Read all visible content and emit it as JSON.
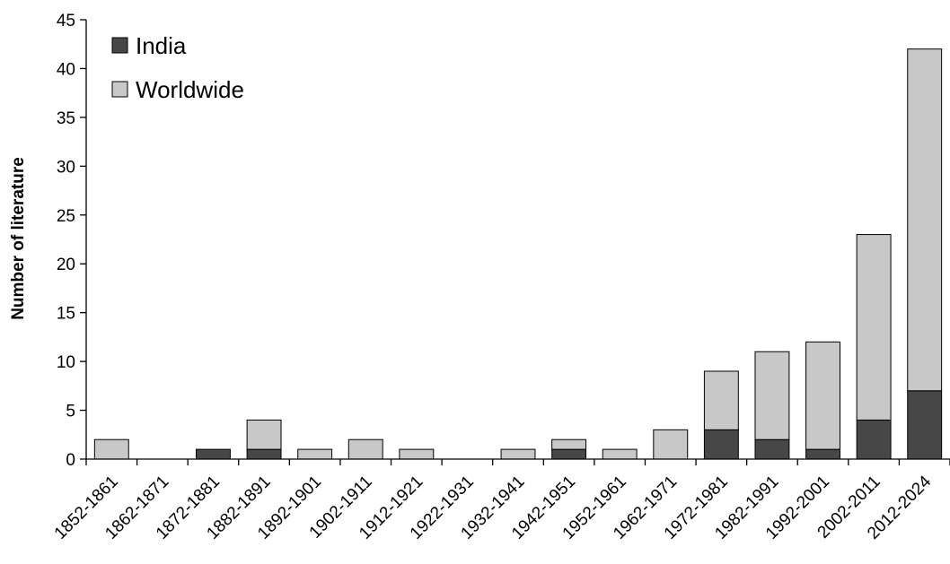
{
  "chart_data": {
    "type": "bar",
    "stacked": true,
    "title": "",
    "xlabel": "",
    "ylabel": "Number of literature",
    "ylim": [
      0,
      45
    ],
    "yticks": [
      0,
      5,
      10,
      15,
      20,
      25,
      30,
      35,
      40,
      45
    ],
    "grid": false,
    "legend_position": "top-left",
    "categories": [
      "1852-1861",
      "1862-1871",
      "1872-1881",
      "1882-1891",
      "1892-1901",
      "1902-1911",
      "1912-1921",
      "1922-1931",
      "1932-1941",
      "1942-1951",
      "1952-1961",
      "1962-1971",
      "1972-1981",
      "1982-1991",
      "1992-2001",
      "2002-2011",
      "2012-2024"
    ],
    "series": [
      {
        "name": "India",
        "color": "#474747",
        "values": [
          0,
          0,
          1,
          1,
          0,
          0,
          0,
          0,
          0,
          1,
          0,
          0,
          3,
          2,
          1,
          4,
          7
        ]
      },
      {
        "name": "Worldwide",
        "color": "#c8c8c8",
        "values": [
          2,
          0,
          0,
          3,
          1,
          2,
          1,
          0,
          1,
          1,
          1,
          3,
          6,
          9,
          11,
          19,
          35
        ]
      }
    ]
  }
}
